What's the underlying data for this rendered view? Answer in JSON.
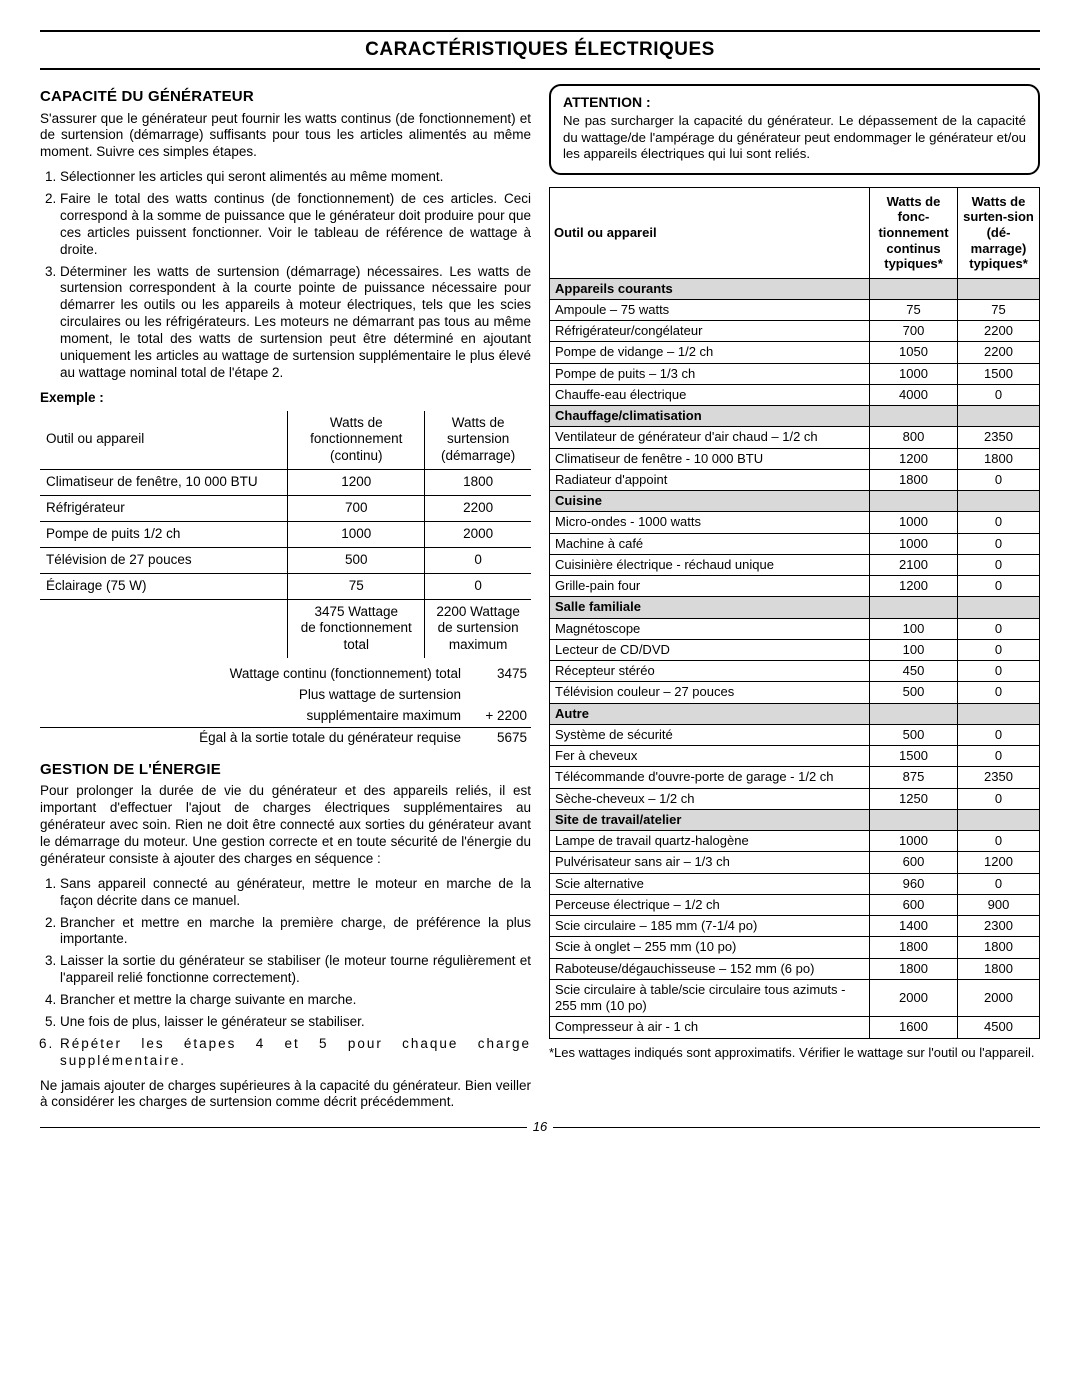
{
  "page": {
    "title": "CARACTÉRISTIQUES ÉLECTRIQUES",
    "page_number": "16"
  },
  "left": {
    "cap_heading": "CAPACITÉ DU GÉNÉRATEUR",
    "cap_intro": "S'assurer que le générateur peut fournir les watts continus (de fonctionnement) et de surtension (démarrage) suffisants pour tous les articles alimentés au même moment. Suivre ces simples étapes.",
    "cap_steps": [
      "Sélectionner les articles qui seront alimentés au même moment.",
      "Faire le total des watts continus (de fonctionnement) de ces articles. Ceci correspond à la somme de puissance que le générateur doit produire pour que ces articles puissent fonctionner. Voir le tableau de référence de wattage à droite.",
      "Déterminer les watts de surtension (démarrage) nécessaires. Les watts de surtension correspondent à la courte pointe de puissance nécessaire pour démarrer les outils ou les appareils à moteur électriques, tels que les scies circulaires ou les réfrigérateurs. Les moteurs ne démarrant pas tous au même moment, le total des watts de surtension peut être déterminé en ajoutant uniquement les articles au wattage de surtension supplémentaire le plus élevé au wattage nominal total de l'étape 2."
    ],
    "example_label": "Exemple :",
    "ex_hdr_tool": "Outil ou appareil",
    "ex_hdr_run1": "Watts de",
    "ex_hdr_run2": "fonctionnement",
    "ex_hdr_run3": "(continu)",
    "ex_hdr_surge1": "Watts de",
    "ex_hdr_surge2": "surtension",
    "ex_hdr_surge3": "(démarrage)",
    "ex_rows": [
      {
        "tool": "Climatiseur de fenêtre, 10 000 BTU",
        "run": "1200",
        "surge": "1800"
      },
      {
        "tool": "Réfrigérateur",
        "run": "700",
        "surge": "2200"
      },
      {
        "tool": "Pompe de puits 1/2 ch",
        "run": "1000",
        "surge": "2000"
      },
      {
        "tool": "Télévision de 27 pouces",
        "run": "500",
        "surge": "0"
      },
      {
        "tool": "Éclairage (75 W)",
        "run": "75",
        "surge": "0"
      }
    ],
    "ex_total_run1": "3475 Wattage",
    "ex_total_run2": "de fonctionnement",
    "ex_total_run3": "total",
    "ex_total_surge1": "2200 Wattage",
    "ex_total_surge2": "de surtension",
    "ex_total_surge3": "maximum",
    "sum_line1_label": "Wattage continu (fonctionnement) total",
    "sum_line1_val": "3475",
    "sum_line2_label1": "Plus wattage de surtension",
    "sum_line2_label2": "supplémentaire maximum",
    "sum_line2_val": "+ 2200",
    "sum_line3_label": "Égal à la sortie totale du générateur requise",
    "sum_line3_val": "5675",
    "pm_heading": "GESTION DE L'ÉNERGIE",
    "pm_intro": "Pour prolonger la durée de vie du générateur et des appareils reliés, il est important d'effectuer l'ajout de charges électriques supplémentaires au générateur avec soin. Rien ne doit être connecté aux sorties du générateur avant le démarrage du moteur. Une gestion correcte et en toute sécurité de l'énergie du générateur consiste à ajouter des charges en séquence :",
    "pm_steps": [
      "Sans appareil connecté au générateur, mettre le moteur en marche de la façon décrite dans ce manuel.",
      "Brancher et mettre en marche la première charge, de préférence la plus importante.",
      "Laisser la sortie du générateur se stabiliser (le moteur tourne régulièrement et l'appareil relié fonctionne correctement).",
      "Brancher et mettre la charge suivante en marche.",
      "Une fois de plus, laisser le générateur se stabiliser.",
      "Répéter les étapes 4 et 5 pour chaque charge supplémentaire."
    ],
    "pm_close": "Ne jamais ajouter de charges supérieures à la capacité du générateur. Bien veiller à considérer les charges de surtension comme décrit précédemment."
  },
  "right": {
    "att_heading": "ATTENTION :",
    "att_text": "Ne pas surcharger la capacité du générateur. Le dépassement de la capacité du wattage/de l'ampérage du générateur peut endommager le générateur et/ou les appareils électriques qui lui sont reliés.",
    "ref_hdr_tool": "Outil ou appareil",
    "ref_hdr_run": "Watts de fonc-tionnement continus typiques*",
    "ref_hdr_surge": "Watts de surten-sion (dé-marrage) typiques*",
    "ref_rows": [
      {
        "type": "cat",
        "label": "Appareils courants"
      },
      {
        "type": "row",
        "label": "Ampoule – 75 watts",
        "run": "75",
        "surge": "75"
      },
      {
        "type": "row",
        "label": "Réfrigérateur/congélateur",
        "run": "700",
        "surge": "2200"
      },
      {
        "type": "row",
        "label": "Pompe de vidange – 1/2 ch",
        "run": "1050",
        "surge": "2200"
      },
      {
        "type": "row",
        "label": "Pompe de puits – 1/3 ch",
        "run": "1000",
        "surge": "1500"
      },
      {
        "type": "row",
        "label": "Chauffe-eau électrique",
        "run": "4000",
        "surge": "0"
      },
      {
        "type": "cat",
        "label": "Chauffage/climatisation"
      },
      {
        "type": "row",
        "label": "Ventilateur de générateur d'air chaud – 1/2 ch",
        "run": "800",
        "surge": "2350"
      },
      {
        "type": "row",
        "label": "Climatiseur de fenêtre - 10 000 BTU",
        "run": "1200",
        "surge": "1800"
      },
      {
        "type": "row",
        "label": "Radiateur d'appoint",
        "run": "1800",
        "surge": "0"
      },
      {
        "type": "cat",
        "label": "Cuisine"
      },
      {
        "type": "row",
        "label": "Micro-ondes - 1000 watts",
        "run": "1000",
        "surge": "0"
      },
      {
        "type": "row",
        "label": "Machine à café",
        "run": "1000",
        "surge": "0"
      },
      {
        "type": "row",
        "label": "Cuisinière électrique - réchaud unique",
        "run": "2100",
        "surge": "0"
      },
      {
        "type": "row",
        "label": "Grille-pain four",
        "run": "1200",
        "surge": "0"
      },
      {
        "type": "cat",
        "label": "Salle familiale"
      },
      {
        "type": "row",
        "label": "Magnétoscope",
        "run": "100",
        "surge": "0"
      },
      {
        "type": "row",
        "label": "Lecteur de CD/DVD",
        "run": "100",
        "surge": "0"
      },
      {
        "type": "row",
        "label": "Récepteur stéréo",
        "run": "450",
        "surge": "0"
      },
      {
        "type": "row",
        "label": "Télévision couleur – 27 pouces",
        "run": "500",
        "surge": "0"
      },
      {
        "type": "cat",
        "label": "Autre"
      },
      {
        "type": "row",
        "label": "Système de sécurité",
        "run": "500",
        "surge": "0"
      },
      {
        "type": "row",
        "label": "Fer à cheveux",
        "run": "1500",
        "surge": "0"
      },
      {
        "type": "row",
        "label": "Télécommande d'ouvre-porte de garage - 1/2 ch",
        "run": "875",
        "surge": "2350"
      },
      {
        "type": "row",
        "label": "Sèche-cheveux – 1/2 ch",
        "run": "1250",
        "surge": "0"
      },
      {
        "type": "cat",
        "label": "Site de travail/atelier"
      },
      {
        "type": "row",
        "label": "Lampe de travail quartz-halogène",
        "run": "1000",
        "surge": "0"
      },
      {
        "type": "row",
        "label": "Pulvérisateur sans air – 1/3 ch",
        "run": "600",
        "surge": "1200"
      },
      {
        "type": "row",
        "label": "Scie alternative",
        "run": "960",
        "surge": "0"
      },
      {
        "type": "row",
        "label": "Perceuse électrique – 1/2 ch",
        "run": "600",
        "surge": "900"
      },
      {
        "type": "row",
        "label": "Scie circulaire – 185 mm (7-1/4 po)",
        "run": "1400",
        "surge": "2300"
      },
      {
        "type": "row",
        "label": "Scie à onglet – 255 mm (10 po)",
        "run": "1800",
        "surge": "1800"
      },
      {
        "type": "row",
        "label": "Raboteuse/dégauchisseuse – 152 mm (6 po)",
        "run": "1800",
        "surge": "1800"
      },
      {
        "type": "row",
        "label": "Scie circulaire à table/scie circulaire tous azimuts - 255 mm (10 po)",
        "run": "2000",
        "surge": "2000"
      },
      {
        "type": "row",
        "label": "Compresseur à air - 1 ch",
        "run": "1600",
        "surge": "4500"
      }
    ],
    "footnote": "*Les wattages indiqués sont approximatifs. Vérifier le wattage sur l'outil ou l'appareil."
  }
}
